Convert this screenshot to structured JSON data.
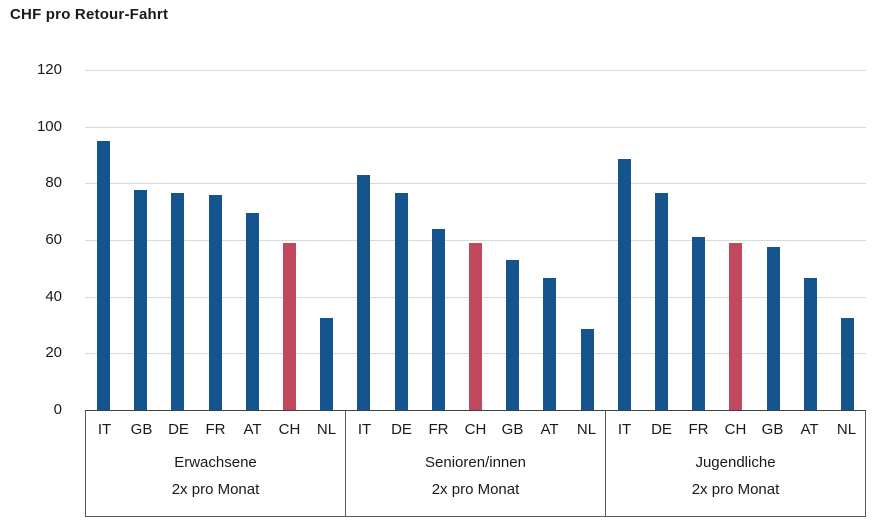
{
  "title": "CHF pro Retour-Fahrt",
  "colors": {
    "bar_default": "#15548C",
    "bar_highlight": "#C0495D",
    "gridline": "#D9D9D9",
    "box_border": "#595959",
    "axis_line": "#404040",
    "text": "#1A1A1A",
    "background": "#FFFFFF"
  },
  "chart_data": {
    "type": "bar",
    "title": "CHF pro Retour-Fahrt",
    "unit": "CHF",
    "ylim": [
      0,
      120
    ],
    "yticks": [
      0,
      20,
      40,
      60,
      80,
      100,
      120
    ],
    "grid": true,
    "legend": false,
    "highlight_category": "CH",
    "groups": [
      {
        "label_line1": "Erwachsene",
        "label_line2": "2x pro Monat",
        "categories": [
          "IT",
          "GB",
          "DE",
          "FR",
          "AT",
          "CH",
          "NL"
        ],
        "values": [
          95,
          77.5,
          76.5,
          76,
          69.5,
          59,
          32.5
        ],
        "highlight": [
          false,
          false,
          false,
          false,
          false,
          true,
          false
        ]
      },
      {
        "label_line1": "Senioren/innen",
        "label_line2": "2x pro Monat",
        "categories": [
          "IT",
          "DE",
          "FR",
          "CH",
          "GB",
          "AT",
          "NL"
        ],
        "values": [
          83,
          76.5,
          64,
          59,
          53,
          46.5,
          28.5
        ],
        "highlight": [
          false,
          false,
          false,
          true,
          false,
          false,
          false
        ]
      },
      {
        "label_line1": "Jugendliche",
        "label_line2": "2x pro Monat",
        "categories": [
          "IT",
          "DE",
          "FR",
          "CH",
          "GB",
          "AT",
          "NL"
        ],
        "values": [
          88.5,
          76.5,
          61,
          59,
          57.5,
          46.5,
          32.5
        ],
        "highlight": [
          false,
          false,
          false,
          true,
          false,
          false,
          false
        ]
      }
    ]
  }
}
